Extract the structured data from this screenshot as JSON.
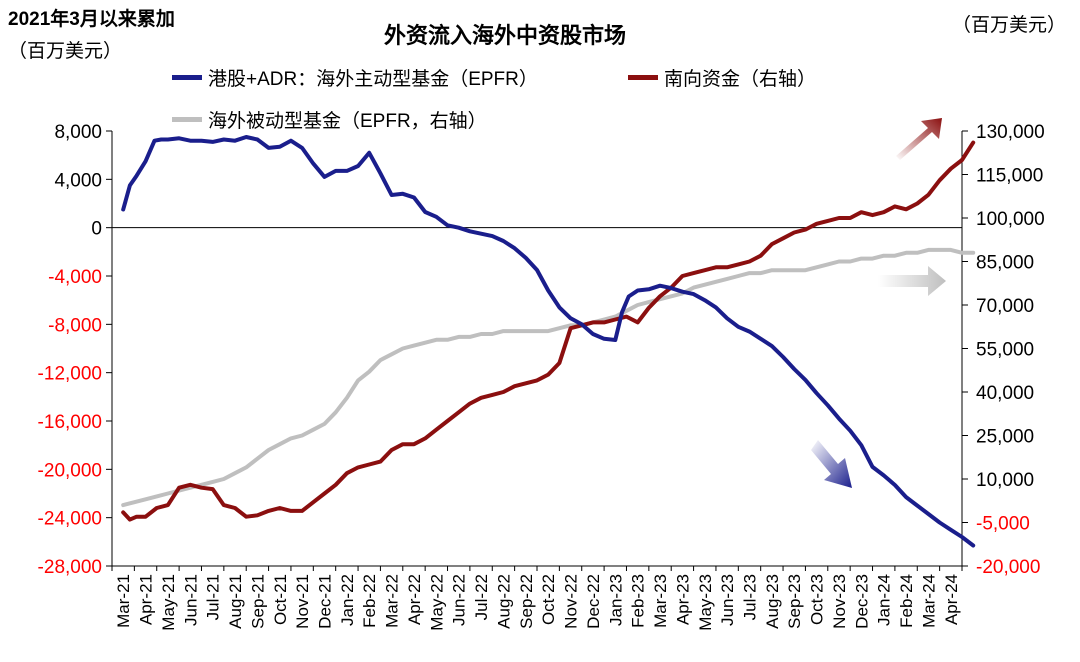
{
  "header": {
    "left_note_line1": "2021年3月以来累加",
    "left_note_line2": "（百万美元）",
    "right_note": "（百万美元）",
    "title": "外资流入海外中资股市场"
  },
  "colors": {
    "epfr_active": "#1a1e8c",
    "southbound": "#8b0f0f",
    "epfr_passive": "#bfbfbf",
    "neg_tick": "#ff0000"
  },
  "chart_data": {
    "type": "line",
    "title": "外资流入海外中资股市场",
    "x_labels": [
      "Mar-21",
      "Apr-21",
      "May-21",
      "Jun-21",
      "Jul-21",
      "Aug-21",
      "Sep-21",
      "Oct-21",
      "Nov-21",
      "Dec-21",
      "Jan-22",
      "Feb-22",
      "Mar-22",
      "Apr-22",
      "May-22",
      "Jun-22",
      "Jul-22",
      "Aug-22",
      "Sep-22",
      "Oct-22",
      "Nov-22",
      "Dec-22",
      "Jan-23",
      "Feb-23",
      "Mar-23",
      "Apr-23",
      "May-23",
      "Jun-23",
      "Jul-23",
      "Aug-23",
      "Sep-23",
      "Oct-23",
      "Nov-23",
      "Dec-23",
      "Jan-24",
      "Feb-24",
      "Mar-24",
      "Apr-24"
    ],
    "left_axis": {
      "label": "2021年3月以来累加（百万美元）",
      "ylim": [
        -28000,
        8000
      ],
      "ticks": [
        8000,
        4000,
        0,
        -4000,
        -8000,
        -12000,
        -16000,
        -20000,
        -24000,
        -28000
      ],
      "tick_labels": [
        "8,000",
        "4,000",
        "0",
        "-4,000",
        "-8,000",
        "-12,000",
        "-16,000",
        "-20,000",
        "-24,000",
        "-28,000"
      ]
    },
    "right_axis": {
      "label": "（百万美元）",
      "ylim": [
        -20000,
        130000
      ],
      "ticks": [
        130000,
        115000,
        100000,
        85000,
        70000,
        55000,
        40000,
        25000,
        10000,
        -5000,
        -20000
      ],
      "tick_labels": [
        "130,000",
        "115,000",
        "100,000",
        "85,000",
        "70,000",
        "55,000",
        "40,000",
        "25,000",
        "10,000",
        "-5,000",
        "-20,000"
      ]
    },
    "series": [
      {
        "name": "港股+ADR：海外主动型基金（EPFR）",
        "axis": "left",
        "color": "#1a1e8c",
        "x": [
          0,
          0.3,
          0.6,
          1,
          1.4,
          1.7,
          2,
          2.5,
          3,
          3.5,
          4,
          4.5,
          5,
          5.5,
          6,
          6.5,
          7,
          7.5,
          8,
          8.5,
          9,
          9.5,
          10,
          10.5,
          11,
          11.5,
          12,
          12.5,
          13,
          13.5,
          14,
          14.5,
          15,
          15.5,
          16,
          16.5,
          17,
          17.5,
          18,
          18.5,
          19,
          19.5,
          20,
          20.5,
          21,
          21.5,
          22,
          22.3,
          22.6,
          23,
          23.5,
          24,
          24.5,
          25,
          25.5,
          26,
          26.5,
          27,
          27.5,
          28,
          28.5,
          29,
          29.5,
          30,
          30.5,
          31,
          31.5,
          32,
          32.5,
          33,
          33.5,
          34,
          34.5,
          35,
          35.5,
          36,
          36.5,
          37,
          37.5,
          38
        ],
        "values": [
          1500,
          3500,
          4300,
          5500,
          7200,
          7300,
          7300,
          7400,
          7200,
          7200,
          7100,
          7300,
          7200,
          7500,
          7300,
          6600,
          6700,
          7200,
          6600,
          5300,
          4200,
          4700,
          4700,
          5100,
          6200,
          4500,
          2700,
          2800,
          2500,
          1300,
          900,
          200,
          0,
          -300,
          -500,
          -700,
          -1100,
          -1700,
          -2500,
          -3500,
          -5200,
          -6600,
          -7500,
          -8000,
          -8800,
          -9200,
          -9300,
          -7000,
          -5700,
          -5200,
          -5100,
          -4800,
          -5000,
          -5300,
          -5500,
          -6000,
          -6600,
          -7500,
          -8200,
          -8600,
          -9200,
          -9800,
          -10700,
          -11700,
          -12600,
          -13700,
          -14700,
          -15800,
          -16800,
          -18000,
          -19800,
          -20500,
          -21300,
          -22300,
          -23000,
          -23700,
          -24400,
          -25000,
          -25600,
          -26300
        ]
      },
      {
        "name": "南向资金（右轴）",
        "axis": "right",
        "color": "#8b0f0f",
        "x": [
          0,
          0.3,
          0.6,
          1,
          1.5,
          2,
          2.5,
          3,
          3.5,
          4,
          4.5,
          5,
          5.5,
          6,
          6.5,
          7,
          7.5,
          8,
          8.5,
          9,
          9.5,
          10,
          10.5,
          11,
          11.5,
          12,
          12.5,
          13,
          13.5,
          14,
          14.5,
          15,
          15.5,
          16,
          16.5,
          17,
          17.5,
          18,
          18.5,
          19,
          19.5,
          20,
          20.5,
          21,
          21.5,
          22,
          22.5,
          23,
          23.5,
          24,
          24.5,
          25,
          25.5,
          26,
          26.5,
          27,
          27.5,
          28,
          28.5,
          29,
          29.5,
          30,
          30.5,
          31,
          31.5,
          32,
          32.5,
          33,
          33.5,
          34,
          34.5,
          35,
          35.5,
          36,
          36.5,
          37,
          37.5,
          38
        ],
        "values": [
          -1500,
          -4000,
          -3000,
          -3000,
          0,
          1000,
          7000,
          8000,
          7000,
          6500,
          1000,
          0,
          -3000,
          -2500,
          -1000,
          0,
          -1000,
          -1000,
          2000,
          5000,
          8000,
          12000,
          14000,
          15000,
          16000,
          20000,
          22000,
          22000,
          24000,
          27000,
          30000,
          33000,
          36000,
          38000,
          39000,
          40000,
          42000,
          43000,
          44000,
          46000,
          50000,
          62000,
          63000,
          64000,
          64000,
          65000,
          66000,
          64000,
          69000,
          73000,
          76000,
          80000,
          81000,
          82000,
          83000,
          83000,
          84000,
          85000,
          87000,
          91000,
          93000,
          95000,
          96000,
          98000,
          99000,
          100000,
          100000,
          102000,
          101000,
          102000,
          104000,
          103000,
          105000,
          108000,
          113000,
          117000,
          120000,
          126000
        ]
      },
      {
        "name": "海外被动型基金（EPFR，右轴）",
        "axis": "right",
        "color": "#bfbfbf",
        "x": [
          0,
          0.5,
          1,
          1.5,
          2,
          2.5,
          3,
          3.5,
          4,
          4.5,
          5,
          5.5,
          6,
          6.5,
          7,
          7.5,
          8,
          8.5,
          9,
          9.5,
          10,
          10.5,
          11,
          11.5,
          12,
          12.5,
          13,
          13.5,
          14,
          14.5,
          15,
          15.5,
          16,
          16.5,
          17,
          17.5,
          18,
          18.5,
          19,
          19.5,
          20,
          20.5,
          21,
          21.5,
          22,
          22.5,
          23,
          23.5,
          24,
          24.5,
          25,
          25.5,
          26,
          26.5,
          27,
          27.5,
          28,
          28.5,
          29,
          29.5,
          30,
          30.5,
          31,
          31.5,
          32,
          32.5,
          33,
          33.5,
          34,
          34.5,
          35,
          35.5,
          36,
          36.5,
          37,
          37.5,
          38
        ],
        "values": [
          1000,
          2000,
          3000,
          4000,
          5000,
          6000,
          7000,
          8000,
          9000,
          10000,
          12000,
          14000,
          17000,
          20000,
          22000,
          24000,
          25000,
          27000,
          29000,
          33000,
          38000,
          44000,
          47000,
          51000,
          53000,
          55000,
          56000,
          57000,
          58000,
          58000,
          59000,
          59000,
          60000,
          60000,
          61000,
          61000,
          61000,
          61000,
          61000,
          62000,
          63000,
          63000,
          64000,
          65000,
          66000,
          68000,
          70000,
          71000,
          72000,
          73000,
          74000,
          76000,
          77000,
          78000,
          79000,
          80000,
          81000,
          81000,
          82000,
          82000,
          82000,
          82000,
          83000,
          84000,
          85000,
          85000,
          86000,
          86000,
          87000,
          87000,
          88000,
          88000,
          89000,
          89000,
          89000,
          88000,
          88000
        ]
      }
    ],
    "legend": {
      "placement": "top",
      "entries": [
        "港股+ADR：海外主动型基金（EPFR）",
        "南向资金（右轴）",
        "海外被动型基金（EPFR，右轴）"
      ]
    },
    "grid": false,
    "annotations": [
      "up-arrow-southbound",
      "right-arrow-passive",
      "down-arrow-active"
    ]
  }
}
